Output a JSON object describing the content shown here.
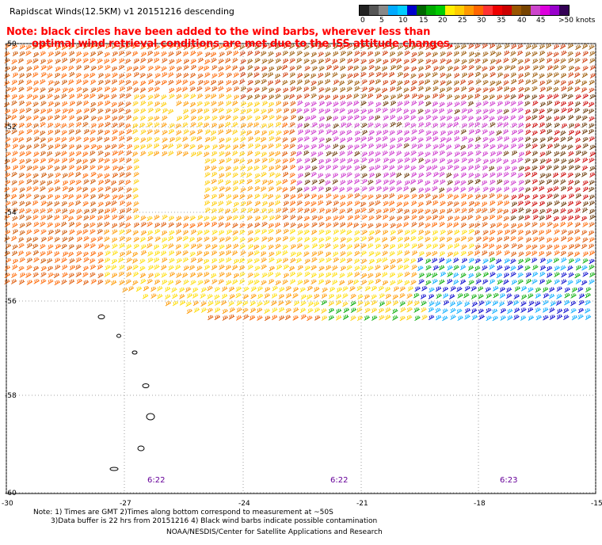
{
  "header": {
    "title": "Rapidscat Winds(12.5KM) v1 20151216 descending",
    "note_line1": "Note: black circles have been added to the wind barbs, wherever less than",
    "note_line2": "optimal wind retrieval conditions are met due to the ISS attitude changes."
  },
  "legend": {
    "colors": [
      "#222222",
      "#555555",
      "#888888",
      "#00aaff",
      "#00ccff",
      "#0000cc",
      "#006600",
      "#00aa00",
      "#00cc00",
      "#ffee00",
      "#ffcc00",
      "#ff9900",
      "#ff6600",
      "#ff3333",
      "#ee0000",
      "#cc0000",
      "#995500",
      "#774400",
      "#cc44cc",
      "#dd00dd",
      "#9900cc",
      "#330055"
    ],
    "labels": [
      {
        "text": "0",
        "x": 2
      },
      {
        "text": "5",
        "x": 26
      },
      {
        "text": "10",
        "x": 50
      },
      {
        "text": "15",
        "x": 76
      },
      {
        "text": "20",
        "x": 100
      },
      {
        "text": "25",
        "x": 125
      },
      {
        "text": "30",
        "x": 149
      },
      {
        "text": "35",
        "x": 174
      },
      {
        "text": "40",
        "x": 200
      },
      {
        "text": "45",
        "x": 224
      },
      {
        "text": ">50 knots",
        "x": 252
      }
    ]
  },
  "map": {
    "lat_labels": [
      "-50",
      "-52",
      "-54",
      "-56",
      "-58",
      "-60"
    ],
    "lon_labels": [
      "-30",
      "-27",
      "-24",
      "-21",
      "-18",
      "-15"
    ],
    "time_labels": [
      "6:22",
      "6:22",
      "6:23"
    ]
  },
  "footer": {
    "line1": "Note: 1) Times are GMT 2)Times along bottom correspond to measurement at ~50S",
    "line2": "3)Data buffer is 22 hrs from 20151216 4) Black wind barbs indicate possible contamination",
    "line3": "NOAA/NESDIS/Center for Satellite Applications and Research"
  }
}
